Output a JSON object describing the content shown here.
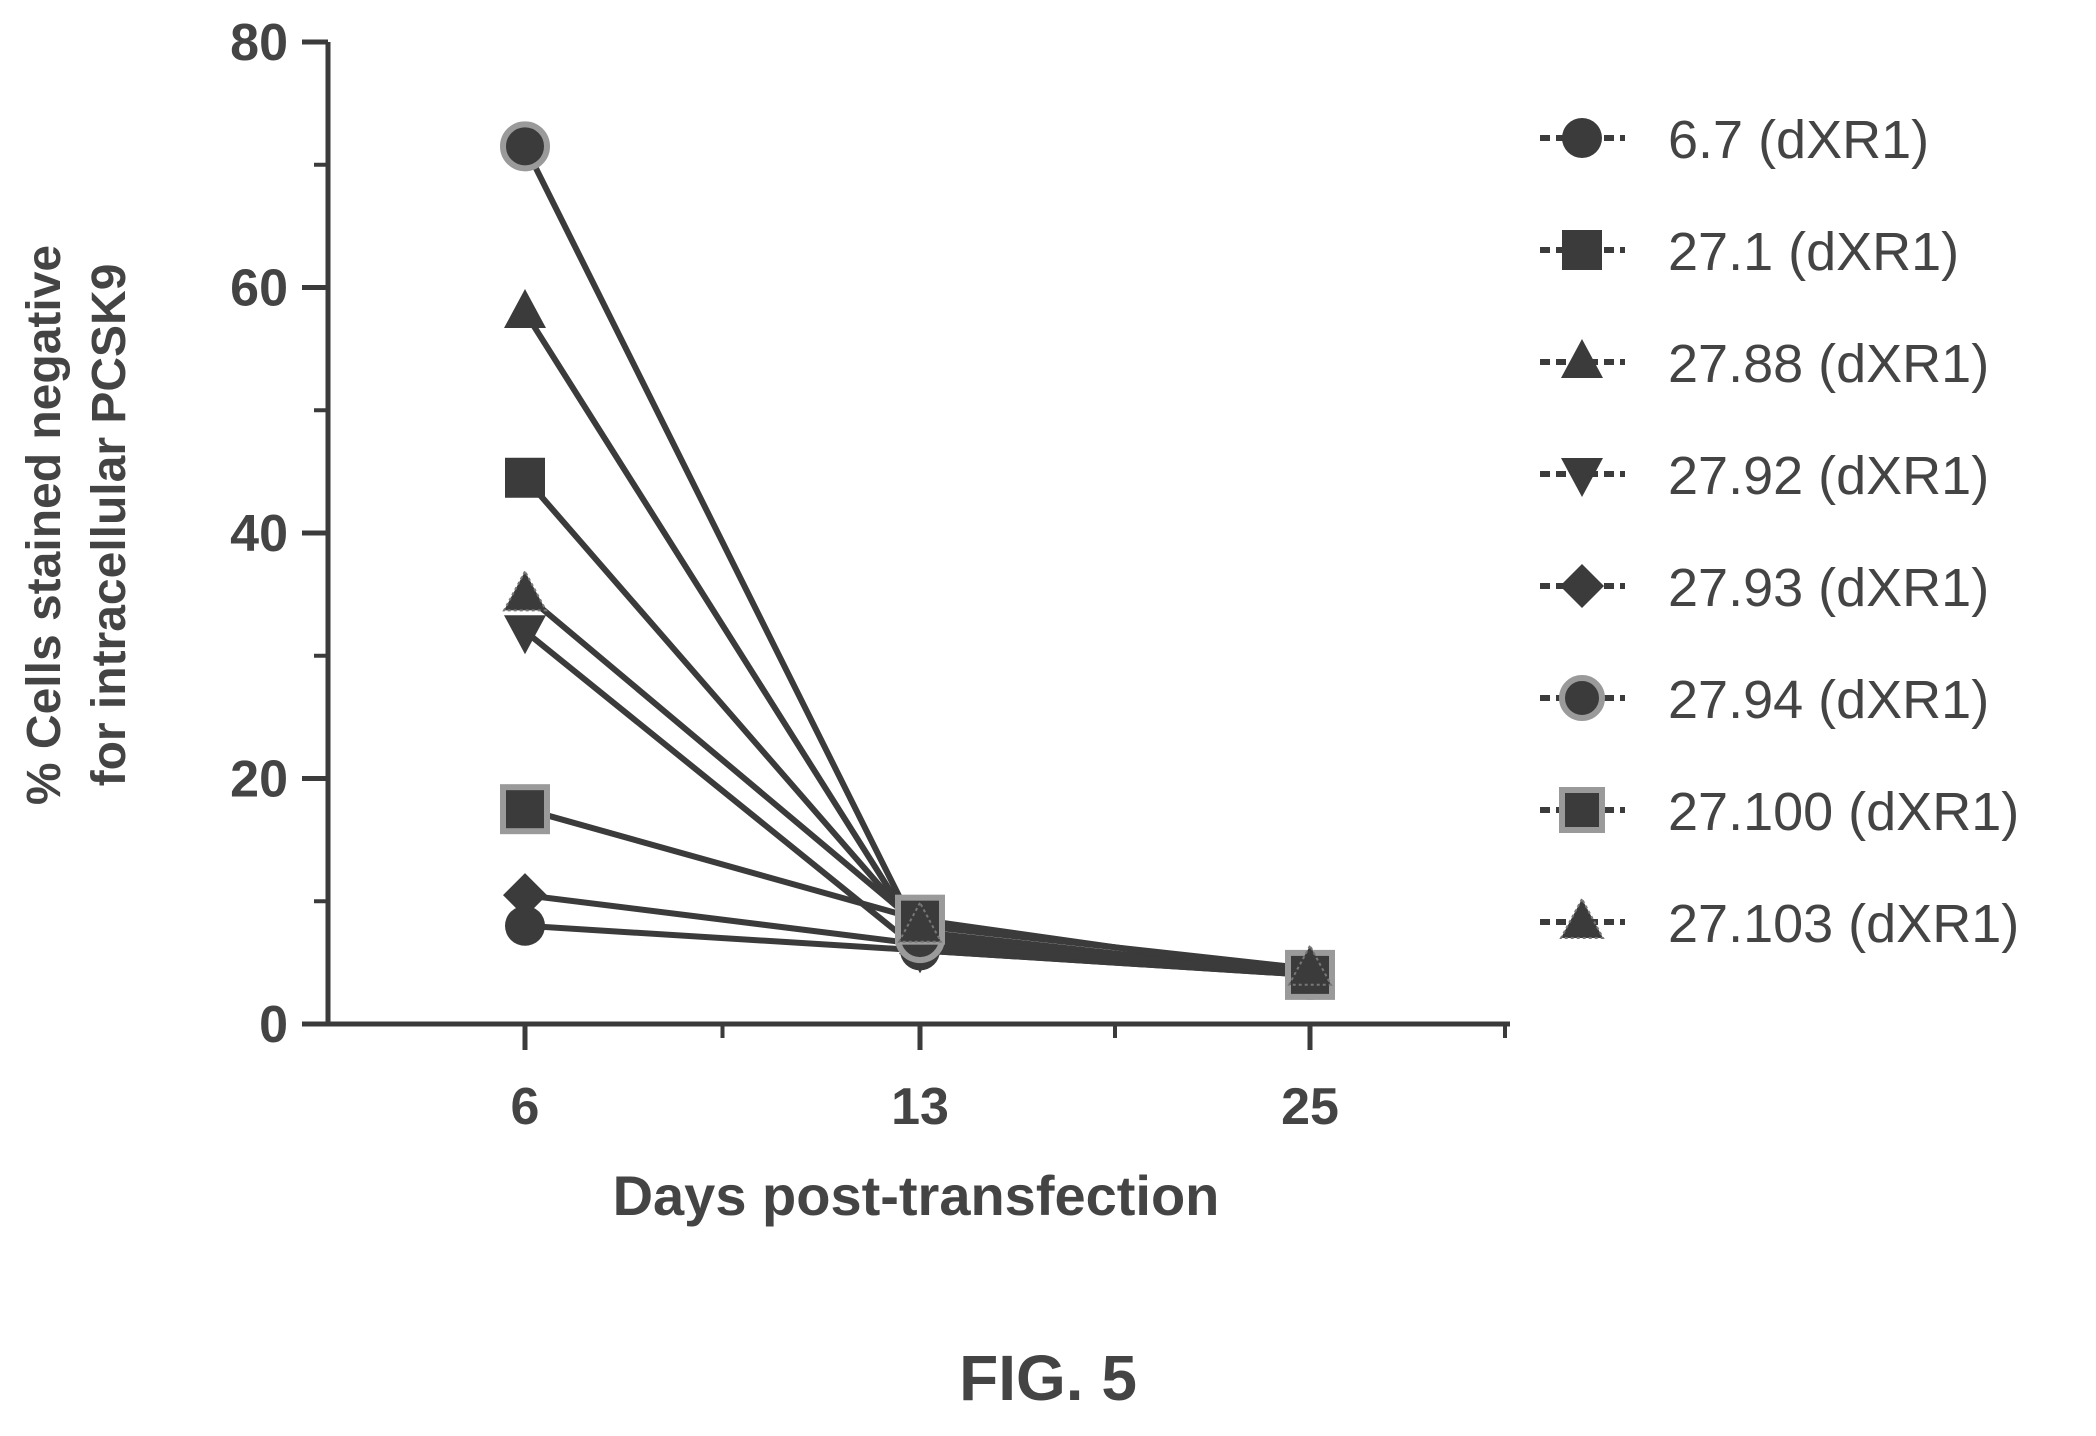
{
  "figure_label": "FIG. 5",
  "chart_data": {
    "type": "line",
    "title": "",
    "xlabel": "Days post-transfection",
    "ylabel_line1": "% Cells stained negative",
    "ylabel_line2": "for intracellular  PCSK9",
    "categories": [
      "6",
      "13",
      "25"
    ],
    "x_scale": "categorical",
    "ylim": [
      0,
      80
    ],
    "yticks": [
      0,
      20,
      40,
      60,
      80
    ],
    "grid": false,
    "legend_position": "right",
    "series": [
      {
        "name": "6.7 (dXR1)",
        "marker": "circle",
        "color": "#3b3b3b",
        "values": [
          8,
          6,
          4
        ]
      },
      {
        "name": "27.1 (dXR1)",
        "marker": "square",
        "color": "#3b3b3b",
        "values": [
          44.5,
          7.5,
          4
        ]
      },
      {
        "name": "27.88 (dXR1)",
        "marker": "triangle-up",
        "color": "#3b3b3b",
        "values": [
          58,
          7,
          4
        ]
      },
      {
        "name": "27.92 (dXR1)",
        "marker": "triangle-down",
        "color": "#3b3b3b",
        "values": [
          32,
          6,
          4
        ]
      },
      {
        "name": "27.93 (dXR1)",
        "marker": "diamond",
        "color": "#3b3b3b",
        "values": [
          10.5,
          6.5,
          4
        ]
      },
      {
        "name": "27.94 (dXR1)",
        "marker": "circle-outlined",
        "color": "#3b3b3b",
        "values": [
          71.5,
          7,
          4
        ]
      },
      {
        "name": "27.100 (dXR1)",
        "marker": "square-outlined",
        "color": "#3b3b3b",
        "values": [
          17.5,
          8.5,
          4
        ]
      },
      {
        "name": "27.103 (dXR1)",
        "marker": "triangle-up-dotted",
        "color": "#3b3b3b",
        "values": [
          35,
          8,
          4.5
        ]
      }
    ]
  }
}
